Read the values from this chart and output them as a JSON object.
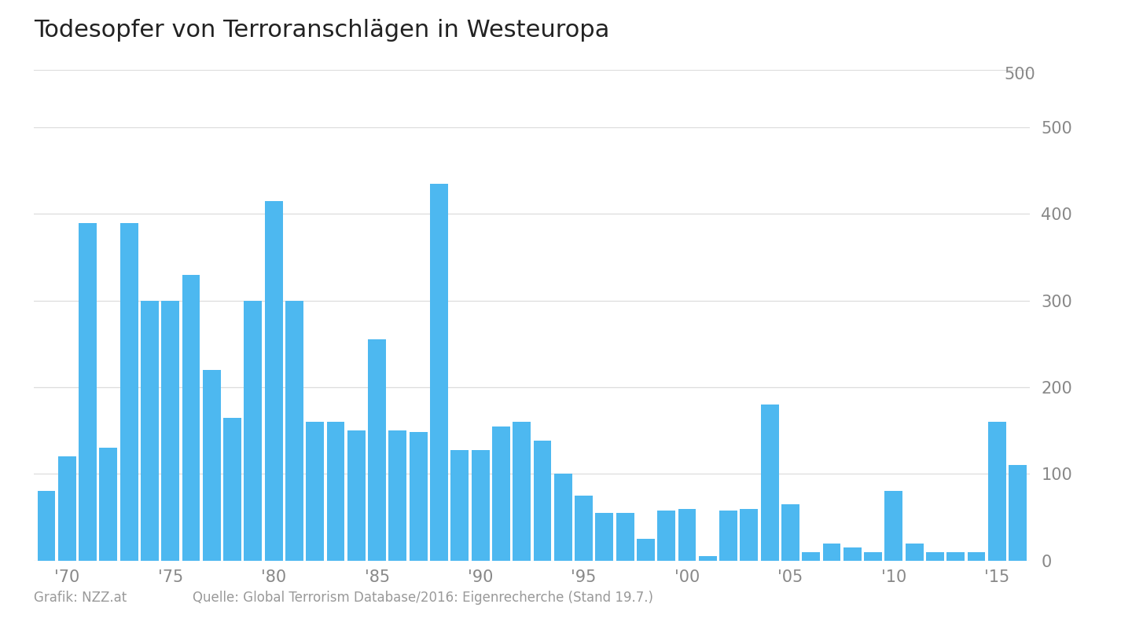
{
  "title": "Todesopfer von Terroranschlägen in Westeuropa",
  "footer_left": "Grafik: NZZ.at",
  "footer_right": "Quelle: Global Terrorism Database/2016: Eigenrecherche (Stand 19.7.)",
  "bar_color": "#4db8f0",
  "background_color": "#ffffff",
  "ylim": [
    0,
    500
  ],
  "yticks": [
    0,
    100,
    200,
    300,
    400,
    500
  ],
  "years": [
    1969,
    1970,
    1971,
    1972,
    1973,
    1974,
    1975,
    1976,
    1977,
    1978,
    1979,
    1980,
    1981,
    1982,
    1983,
    1984,
    1985,
    1986,
    1987,
    1988,
    1989,
    1990,
    1991,
    1992,
    1993,
    1994,
    1995,
    1996,
    1997,
    1998,
    1999,
    2000,
    2001,
    2002,
    2003,
    2004,
    2005,
    2006,
    2007,
    2008,
    2009,
    2010,
    2011,
    2012,
    2013,
    2014,
    2015,
    2016
  ],
  "values": [
    80,
    120,
    390,
    130,
    390,
    300,
    300,
    330,
    220,
    165,
    300,
    415,
    300,
    160,
    160,
    150,
    255,
    150,
    148,
    435,
    128,
    128,
    155,
    160,
    138,
    100,
    75,
    55,
    55,
    25,
    58,
    60,
    5,
    58,
    60,
    180,
    65,
    10,
    20,
    15,
    10,
    80,
    20,
    10,
    10,
    10,
    160,
    110
  ],
  "decade_labels": [
    "'70",
    "'75",
    "'80",
    "'85",
    "'90",
    "'95",
    "'00",
    "'05",
    "'10",
    "'15"
  ],
  "decade_years": [
    1970,
    1975,
    1980,
    1985,
    1990,
    1995,
    2000,
    2005,
    2010,
    2015
  ],
  "grid_color": "#dddddd",
  "tick_color": "#888888",
  "title_color": "#222222",
  "footer_color": "#999999",
  "title_fontsize": 22,
  "tick_fontsize": 15,
  "footer_fontsize": 12
}
